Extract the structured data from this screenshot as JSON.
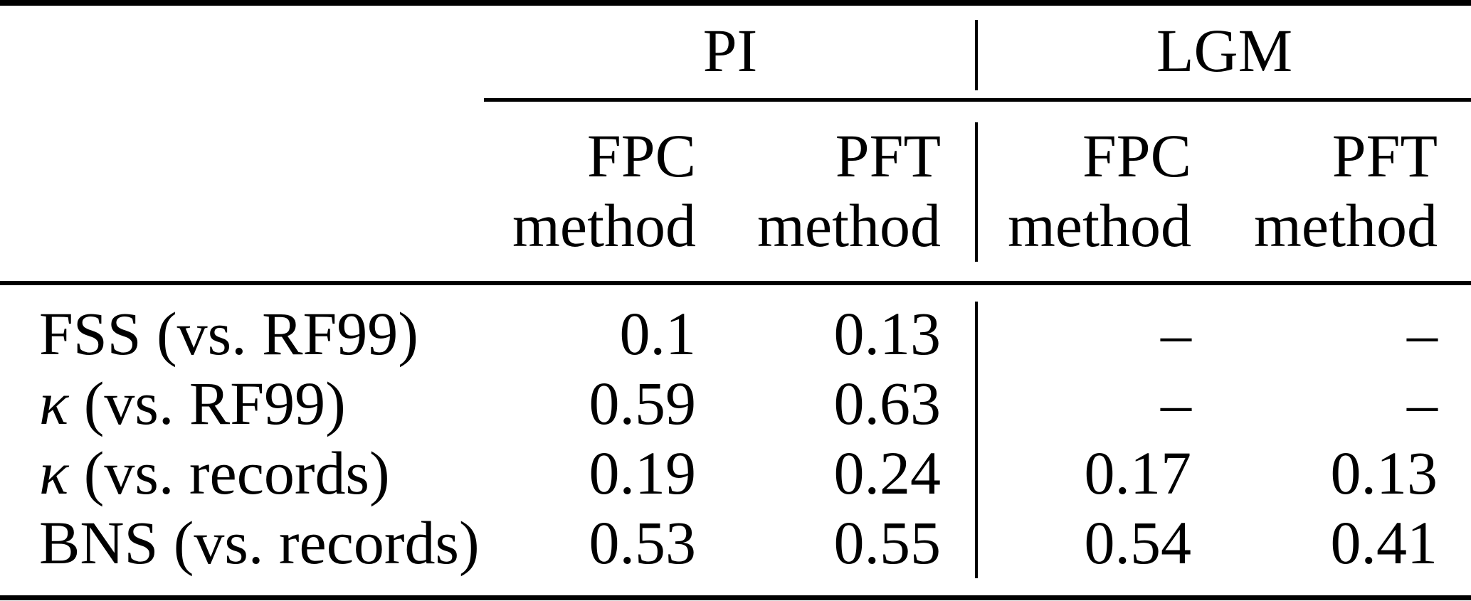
{
  "table": {
    "group_headers": [
      {
        "label": "PI"
      },
      {
        "label": "LGM"
      }
    ],
    "col_headers": [
      {
        "line1": "FPC",
        "line2": "method"
      },
      {
        "line1": "PFT",
        "line2": "method"
      },
      {
        "line1": "FPC",
        "line2": "method"
      },
      {
        "line1": "PFT",
        "line2": "method"
      }
    ],
    "rows": [
      {
        "sym": "FSS",
        "sym_class": "sym",
        "rest": " (vs. RF99)",
        "values": [
          "0.1",
          "0.13",
          "–",
          "–"
        ]
      },
      {
        "sym": "κ",
        "sym_class": "sym italic",
        "rest": " (vs. RF99)",
        "values": [
          "0.59",
          "0.63",
          "–",
          "–"
        ]
      },
      {
        "sym": "κ",
        "sym_class": "sym italic",
        "rest": " (vs. records)",
        "values": [
          "0.19",
          "0.24",
          "0.17",
          "0.13"
        ]
      },
      {
        "sym": "BNS",
        "sym_class": "sym",
        "rest": " (vs. records)",
        "values": [
          "0.53",
          "0.55",
          "0.54",
          "0.41"
        ]
      }
    ]
  },
  "chart_data": {
    "type": "table",
    "column_groups": [
      "PI",
      "LGM"
    ],
    "columns": [
      "PI FPC method",
      "PI PFT method",
      "LGM FPC method",
      "LGM PFT method"
    ],
    "row_labels": [
      "FSS (vs. RF99)",
      "κ (vs. RF99)",
      "κ (vs. records)",
      "BNS (vs. records)"
    ],
    "values": [
      [
        0.1,
        0.13,
        null,
        null
      ],
      [
        0.59,
        0.63,
        null,
        null
      ],
      [
        0.19,
        0.24,
        0.17,
        0.13
      ],
      [
        0.53,
        0.55,
        0.54,
        0.41
      ]
    ]
  },
  "colors": {
    "text": "#000000",
    "background": "#ffffff",
    "rule": "#000000"
  }
}
